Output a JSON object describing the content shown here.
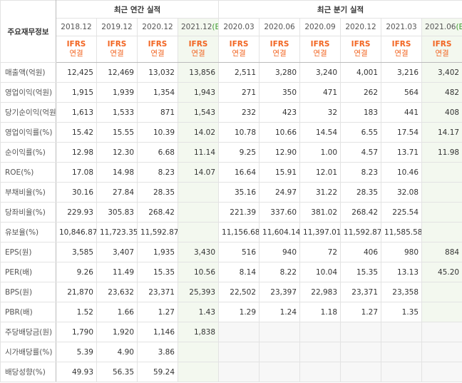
{
  "table": {
    "corner": "주요재무정보",
    "annual_title": "최근 연간 실적",
    "quarter_title": "최근 분기 실적",
    "basis": [
      "IFRS",
      "연결"
    ],
    "annual_periods": [
      "2018.12",
      "2019.12",
      "2020.12",
      {
        "date": "2021.12",
        "mark": "(E)"
      }
    ],
    "quarter_periods": [
      "2020.03",
      "2020.06",
      "2020.09",
      "2020.12",
      "2021.03",
      {
        "date": "2021.06",
        "mark": "(E)"
      }
    ],
    "groups": [
      {
        "rows": [
          {
            "label": "매출액(억원)",
            "values": [
              "12,425",
              "12,469",
              "13,032",
              "13,856",
              "2,511",
              "3,280",
              "3,240",
              "4,001",
              "3,216",
              "3,402"
            ]
          },
          {
            "label": "영업이익(억원)",
            "values": [
              "1,915",
              "1,939",
              "1,354",
              "1,943",
              "271",
              "350",
              "471",
              "262",
              "564",
              "482"
            ]
          },
          {
            "label": "당기순이익(억원)",
            "values": [
              "1,613",
              "1,533",
              "871",
              "1,543",
              "232",
              "423",
              "32",
              "183",
              "441",
              "408"
            ]
          }
        ]
      },
      {
        "rows": [
          {
            "label": "영업이익률(%)",
            "values": [
              "15.42",
              "15.55",
              "10.39",
              "14.02",
              "10.78",
              "10.66",
              "14.54",
              "6.55",
              "17.54",
              "14.17"
            ]
          },
          {
            "label": "순이익률(%)",
            "values": [
              "12.98",
              "12.30",
              "6.68",
              "11.14",
              "9.25",
              "12.90",
              "1.00",
              "4.57",
              "13.71",
              "11.98"
            ]
          },
          {
            "label": "ROE(%)",
            "values": [
              "17.08",
              "14.98",
              "8.23",
              "14.07",
              "16.64",
              "15.91",
              "12.01",
              "8.23",
              "10.46",
              null
            ]
          }
        ]
      },
      {
        "rows": [
          {
            "label": "부채비율(%)",
            "values": [
              "30.16",
              "27.84",
              "28.35",
              null,
              "35.16",
              "24.97",
              "31.22",
              "28.35",
              "32.08",
              null
            ]
          },
          {
            "label": "당좌비율(%)",
            "values": [
              "229.93",
              "305.83",
              "268.42",
              null,
              "221.39",
              "337.60",
              "381.02",
              "268.42",
              "225.54",
              null
            ]
          },
          {
            "label": "유보율(%)",
            "values": [
              "10,846.87",
              "11,723.35",
              "11,592.87",
              null,
              "11,156.68",
              "11,604.14",
              "11,397.01",
              "11,592.87",
              "11,585.58",
              null
            ]
          }
        ]
      },
      {
        "rows": [
          {
            "label": "EPS(원)",
            "values": [
              "3,585",
              "3,407",
              "1,935",
              "3,430",
              "516",
              "940",
              "72",
              "406",
              "980",
              "884"
            ]
          },
          {
            "label": "PER(배)",
            "values": [
              "9.26",
              "11.49",
              "15.35",
              "10.56",
              "8.14",
              "8.22",
              "10.04",
              "15.35",
              "13.13",
              "45.20"
            ]
          },
          {
            "label": "BPS(원)",
            "values": [
              "21,870",
              "23,632",
              "23,371",
              "25,393",
              "22,502",
              "23,397",
              "22,983",
              "23,371",
              "23,358",
              null
            ]
          },
          {
            "label": "PBR(배)",
            "values": [
              "1.52",
              "1.66",
              "1.27",
              "1.43",
              "1.29",
              "1.24",
              "1.18",
              "1.27",
              "1.35",
              null
            ]
          }
        ]
      },
      {
        "rows": [
          {
            "label": "주당배당금(원)",
            "values": [
              "1,790",
              "1,920",
              "1,146",
              "1,838",
              null,
              null,
              null,
              null,
              null,
              null
            ]
          },
          {
            "label": "시가배당률(%)",
            "values": [
              "5.39",
              "4.90",
              "3.86",
              null,
              null,
              null,
              null,
              null,
              null,
              null
            ]
          },
          {
            "label": "배당성향(%)",
            "values": [
              "49.93",
              "56.35",
              "59.24",
              null,
              null,
              null,
              null,
              null,
              null,
              null
            ]
          }
        ]
      }
    ]
  }
}
